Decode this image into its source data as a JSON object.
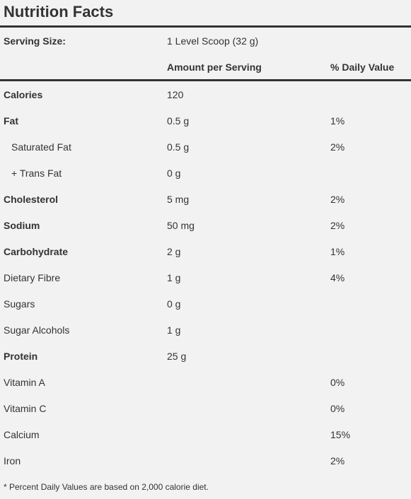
{
  "title": "Nutrition Facts",
  "serving": {
    "label": "Serving Size:",
    "value": "1 Level Scoop (32 g)"
  },
  "header": {
    "amount": "Amount per Serving",
    "daily_value": "% Daily Value"
  },
  "rows": [
    {
      "name": "Calories",
      "amount": "120",
      "bold": true
    },
    {
      "name": "Fat",
      "amount": "0.5 g",
      "daily_value": "1%",
      "bold": true
    },
    {
      "name": "Saturated Fat",
      "amount": "0.5 g",
      "daily_value": "2%",
      "indent": true
    },
    {
      "name": "+ Trans Fat",
      "amount": "0 g",
      "indent": true
    },
    {
      "name": "Cholesterol",
      "amount": "5 mg",
      "daily_value": "2%",
      "bold": true
    },
    {
      "name": "Sodium",
      "amount": "50 mg",
      "daily_value": "2%",
      "bold": true
    },
    {
      "name": "Carbohydrate",
      "amount": "2 g",
      "daily_value": "1%",
      "bold": true
    },
    {
      "name": "Dietary Fibre",
      "amount": "1 g",
      "daily_value": "4%"
    },
    {
      "name": "Sugars",
      "amount": "0 g"
    },
    {
      "name": "Sugar Alcohols",
      "amount": "1 g"
    },
    {
      "name": "Protein",
      "amount": "25 g",
      "bold": true
    },
    {
      "name": "Vitamin A",
      "daily_value": "0%"
    },
    {
      "name": "Vitamin C",
      "daily_value": "0%"
    },
    {
      "name": "Calcium",
      "daily_value": "15%"
    },
    {
      "name": "Iron",
      "daily_value": "2%"
    }
  ],
  "footnote": "* Percent Daily Values are based on 2,000 calorie diet."
}
